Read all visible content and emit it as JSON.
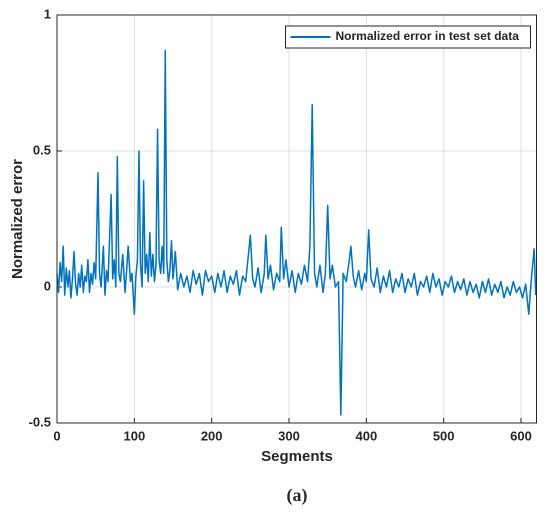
{
  "chart_data": {
    "type": "line",
    "xlabel": "Segments",
    "ylabel": "Normalized error",
    "annotation": "(a)",
    "x": [
      0,
      2,
      4,
      6,
      8,
      10,
      12,
      14,
      16,
      18,
      20,
      22,
      24,
      26,
      28,
      30,
      32,
      34,
      36,
      38,
      40,
      42,
      44,
      46,
      48,
      50,
      53,
      55,
      57,
      60,
      62,
      64,
      66,
      70,
      72,
      74,
      76,
      78,
      80,
      82,
      85,
      88,
      90,
      92,
      95,
      97,
      100,
      102,
      104,
      106,
      108,
      110,
      112,
      114,
      116,
      118,
      120,
      122,
      124,
      126,
      128,
      130,
      132,
      134,
      136,
      138,
      140,
      142,
      144,
      146,
      148,
      150,
      153,
      156,
      160,
      164,
      168,
      172,
      176,
      180,
      184,
      188,
      192,
      196,
      200,
      204,
      208,
      212,
      216,
      220,
      224,
      228,
      232,
      236,
      240,
      244,
      250,
      253,
      256,
      260,
      264,
      268,
      270,
      273,
      276,
      280,
      284,
      288,
      290,
      293,
      296,
      300,
      304,
      308,
      312,
      316,
      320,
      324,
      327,
      330,
      333,
      336,
      340,
      344,
      347,
      350,
      353,
      356,
      360,
      364,
      367,
      370,
      374,
      378,
      380,
      383,
      386,
      390,
      394,
      398,
      400,
      403,
      406,
      410,
      414,
      418,
      422,
      426,
      430,
      434,
      438,
      442,
      446,
      450,
      454,
      458,
      462,
      466,
      470,
      474,
      478,
      482,
      486,
      490,
      494,
      498,
      502,
      506,
      510,
      514,
      518,
      522,
      526,
      530,
      534,
      538,
      542,
      546,
      550,
      554,
      558,
      562,
      566,
      570,
      574,
      578,
      582,
      586,
      590,
      594,
      598,
      602,
      606,
      610,
      612,
      614,
      617,
      619
    ],
    "series": [
      {
        "name": "Normalized error in test set data",
        "color": "#0072bd",
        "values": [
          0.05,
          -0.02,
          0.09,
          0.02,
          0.15,
          -0.03,
          0.07,
          0.0,
          0.06,
          -0.04,
          0.03,
          0.13,
          0.01,
          -0.03,
          0.05,
          0.0,
          0.08,
          -0.02,
          0.04,
          0.02,
          0.1,
          -0.02,
          0.05,
          0.01,
          0.09,
          0.03,
          0.42,
          0.05,
          0.0,
          0.15,
          -0.03,
          0.06,
          0.02,
          0.34,
          0.03,
          0.1,
          0.0,
          0.48,
          0.05,
          0.02,
          0.12,
          -0.02,
          0.06,
          0.15,
          0.02,
          0.05,
          -0.1,
          0.04,
          0.1,
          0.5,
          0.08,
          0.0,
          0.39,
          0.05,
          0.12,
          0.02,
          0.2,
          0.04,
          0.12,
          0.02,
          0.08,
          0.58,
          0.1,
          0.05,
          0.15,
          0.05,
          0.87,
          0.1,
          0.02,
          0.06,
          0.17,
          0.03,
          0.13,
          -0.01,
          0.05,
          0.0,
          0.04,
          -0.02,
          0.06,
          0.01,
          0.05,
          -0.03,
          0.06,
          0.02,
          0.04,
          -0.02,
          0.05,
          0.0,
          0.06,
          -0.02,
          0.04,
          0.01,
          0.06,
          -0.03,
          0.04,
          0.02,
          0.19,
          0.03,
          0.0,
          0.07,
          -0.02,
          0.05,
          0.19,
          0.03,
          0.08,
          -0.01,
          0.05,
          0.02,
          0.22,
          0.03,
          0.1,
          0.0,
          0.06,
          -0.02,
          0.05,
          0.01,
          0.08,
          0.02,
          0.15,
          0.67,
          0.05,
          0.0,
          0.08,
          -0.02,
          0.05,
          0.3,
          0.03,
          0.08,
          0.0,
          0.02,
          -0.47,
          0.05,
          0.02,
          0.1,
          0.15,
          0.04,
          0.0,
          0.06,
          -0.01,
          0.05,
          0.02,
          0.21,
          0.03,
          0.0,
          0.07,
          -0.02,
          0.04,
          0.0,
          0.06,
          -0.02,
          0.03,
          0.0,
          0.05,
          -0.02,
          0.03,
          0.0,
          0.05,
          -0.03,
          0.02,
          0.0,
          0.04,
          -0.02,
          0.05,
          0.0,
          0.03,
          -0.03,
          0.02,
          0.0,
          0.04,
          -0.02,
          0.02,
          -0.01,
          0.03,
          -0.03,
          0.02,
          -0.02,
          0.01,
          -0.04,
          0.02,
          -0.02,
          0.03,
          -0.03,
          0.01,
          -0.02,
          0.02,
          -0.04,
          0.0,
          -0.03,
          0.02,
          -0.02,
          0.0,
          -0.04,
          0.01,
          -0.1,
          -0.02,
          0.05,
          0.14,
          -0.03
        ]
      }
    ],
    "xlim": [
      0,
      620
    ],
    "xticks": [
      0,
      100,
      200,
      300,
      400,
      500,
      600
    ],
    "ylim": [
      -0.5,
      1
    ],
    "yticks": [
      -0.5,
      0,
      0.5,
      1
    ],
    "grid": true,
    "legend": "upper right"
  }
}
